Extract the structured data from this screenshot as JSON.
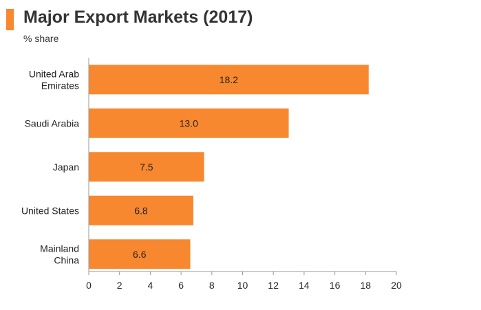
{
  "header": {
    "title": "Major Export Markets (2017)",
    "subtitle": "% share",
    "accent_color": "#F7882F"
  },
  "chart_data": {
    "type": "bar",
    "orientation": "horizontal",
    "title": "Major Export Markets (2017)",
    "subtitle": "% share",
    "categories": [
      [
        "United Arab",
        "Emirates"
      ],
      [
        "Saudi Arabia"
      ],
      [
        "Japan"
      ],
      [
        "United States"
      ],
      [
        "Mainland",
        "China"
      ]
    ],
    "values": [
      18.2,
      13.0,
      7.5,
      6.8,
      6.6
    ],
    "value_labels": [
      "18.2",
      "13.0",
      "7.5",
      "6.8",
      "6.6"
    ],
    "xlim": [
      0,
      20
    ],
    "x_ticks": [
      0,
      2,
      4,
      6,
      8,
      10,
      12,
      14,
      16,
      18,
      20
    ],
    "bar_color": "#F7882F",
    "grid": false,
    "legend": "none"
  }
}
